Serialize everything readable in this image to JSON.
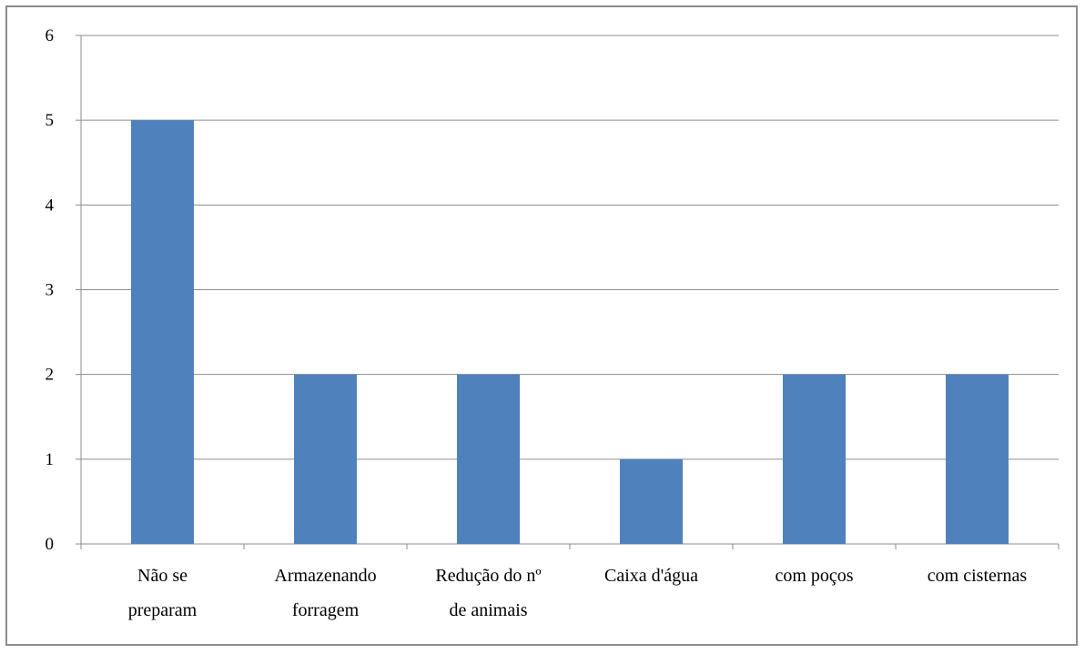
{
  "chart_data": {
    "type": "bar",
    "categories": [
      [
        "Não se",
        "preparam"
      ],
      [
        "Armazenando",
        "forragem"
      ],
      [
        "Redução do nº",
        "de animais"
      ],
      [
        "Caixa d'água"
      ],
      [
        "com poços"
      ],
      [
        "com cisternas"
      ]
    ],
    "values": [
      5,
      2,
      2,
      1,
      2,
      2
    ],
    "ylim": [
      0,
      6
    ],
    "yticks": [
      0,
      1,
      2,
      3,
      4,
      5,
      6
    ],
    "grid": true,
    "bar_color": "#4f81bd",
    "grid_color": "#8c8c8c"
  }
}
